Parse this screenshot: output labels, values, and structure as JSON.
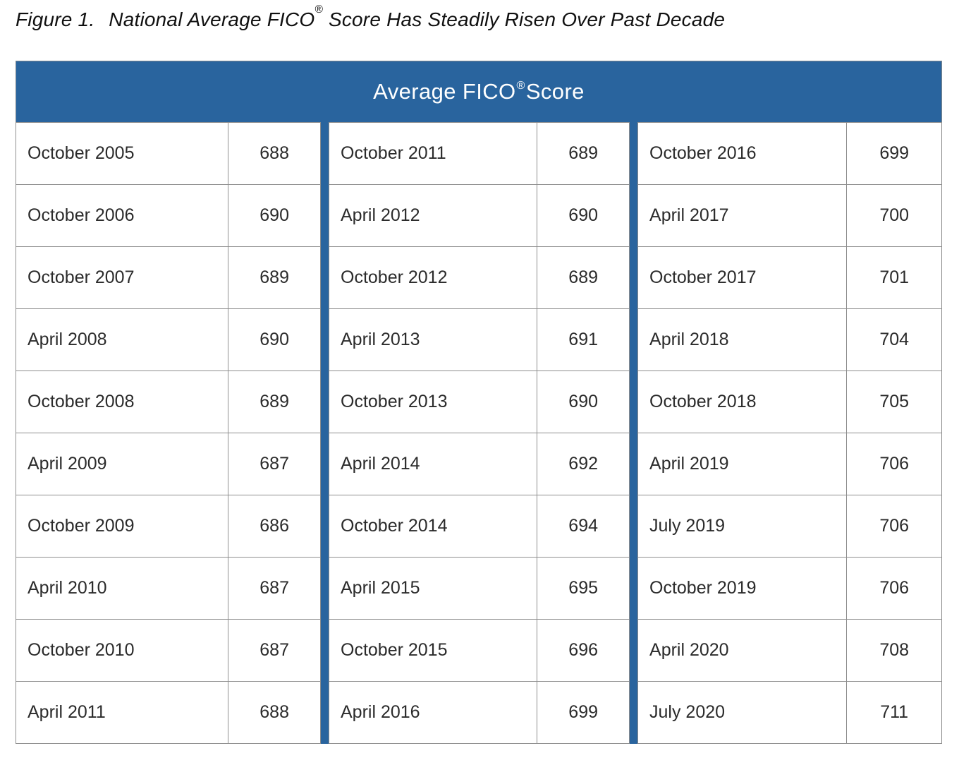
{
  "figure": {
    "label": "Figure 1.",
    "title_before_mark": "National Average FICO",
    "registered_mark": "®",
    "title_after_mark": " Score Has Steadily Risen Over Past Decade"
  },
  "table": {
    "header_before_mark": "Average FICO",
    "header_mark": "®",
    "header_after_mark": " Score",
    "groups": [
      {
        "rows": [
          {
            "date": "October 2005",
            "score": "688"
          },
          {
            "date": "October 2006",
            "score": "690"
          },
          {
            "date": "October 2007",
            "score": "689"
          },
          {
            "date": "April 2008",
            "score": "690"
          },
          {
            "date": "October 2008",
            "score": "689"
          },
          {
            "date": "April 2009",
            "score": "687"
          },
          {
            "date": "October 2009",
            "score": "686"
          },
          {
            "date": "April 2010",
            "score": "687"
          },
          {
            "date": "October 2010",
            "score": "687"
          },
          {
            "date": "April 2011",
            "score": "688"
          }
        ]
      },
      {
        "rows": [
          {
            "date": "October 2011",
            "score": "689"
          },
          {
            "date": "April 2012",
            "score": "690"
          },
          {
            "date": "October 2012",
            "score": "689"
          },
          {
            "date": "April 2013",
            "score": "691"
          },
          {
            "date": "October 2013",
            "score": "690"
          },
          {
            "date": "April 2014",
            "score": "692"
          },
          {
            "date": "October 2014",
            "score": "694"
          },
          {
            "date": "April 2015",
            "score": "695"
          },
          {
            "date": "October 2015",
            "score": "696"
          },
          {
            "date": "April 2016",
            "score": "699"
          }
        ]
      },
      {
        "rows": [
          {
            "date": "October 2016",
            "score": "699"
          },
          {
            "date": "April 2017",
            "score": "700"
          },
          {
            "date": "October 2017",
            "score": "701"
          },
          {
            "date": "April 2018",
            "score": "704"
          },
          {
            "date": "October 2018",
            "score": "705"
          },
          {
            "date": "April 2019",
            "score": "706"
          },
          {
            "date": "July 2019",
            "score": "706"
          },
          {
            "date": "October 2019",
            "score": "706"
          },
          {
            "date": "April 2020",
            "score": "708"
          },
          {
            "date": "July 2020",
            "score": "711"
          }
        ]
      }
    ]
  },
  "colors": {
    "header_blue": "#29649E",
    "separator_blue": "#29649E",
    "border_gray": "#8E8E8E",
    "text_dark": "#2B2B2B",
    "header_text": "#FFFFFF",
    "background": "#FFFFFF"
  },
  "chart_data": {
    "type": "table",
    "title": "Average FICO® Score",
    "figure_caption": "Figure 1. National Average FICO® Score Has Steadily Risen Over Past Decade",
    "categories": [
      "October 2005",
      "October 2006",
      "October 2007",
      "April 2008",
      "October 2008",
      "April 2009",
      "October 2009",
      "April 2010",
      "October 2010",
      "April 2011",
      "October 2011",
      "April 2012",
      "October 2012",
      "April 2013",
      "October 2013",
      "April 2014",
      "October 2014",
      "April 2015",
      "October 2015",
      "April 2016",
      "October 2016",
      "April 2017",
      "October 2017",
      "April 2018",
      "October 2018",
      "April 2019",
      "July 2019",
      "October 2019",
      "April 2020",
      "July 2020"
    ],
    "values": [
      688,
      690,
      689,
      690,
      689,
      687,
      686,
      687,
      687,
      688,
      689,
      690,
      689,
      691,
      690,
      692,
      694,
      695,
      696,
      699,
      699,
      700,
      701,
      704,
      705,
      706,
      706,
      706,
      708,
      711
    ],
    "layout": "three column-pairs (Date | Score), chronological top-to-bottom then left-to-right, thick blue vertical separators between pairs"
  }
}
